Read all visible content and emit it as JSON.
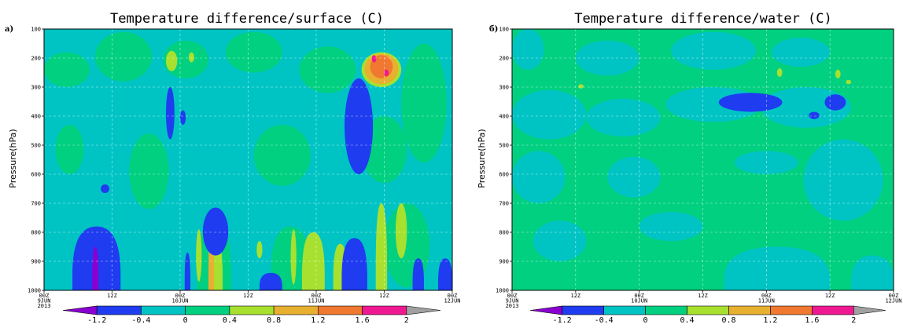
{
  "colors": {
    "c_lt_m12": "#8a00d0",
    "c_m12_m04": "#1f3cf0",
    "c_m04_0": "#00c4c4",
    "c_0_04": "#00d080",
    "c_04_08": "#a8e030",
    "c_08_12": "#e8b030",
    "c_12_16": "#f07830",
    "c_16_2": "#f01890",
    "c_gt_2": "#a0a0a0"
  },
  "colorbar_labels": [
    "-1.2",
    "-0.4",
    "0",
    "0.4",
    "0.8",
    "1.2",
    "1.6",
    "2"
  ],
  "chart_data": [
    {
      "type": "heatmap",
      "panel_label": "a)",
      "title": "Temperature difference/surface (C)",
      "ylabel": "Pressure(hPa)",
      "xlabel": "",
      "yticks": [
        "100",
        "200",
        "300",
        "400",
        "500",
        "600",
        "700",
        "800",
        "900",
        "1000"
      ],
      "xticks": [
        {
          "lines": [
            "00Z",
            "9JUN",
            "2013"
          ]
        },
        {
          "lines": [
            "12Z"
          ]
        },
        {
          "lines": [
            "00Z",
            "10JUN"
          ]
        },
        {
          "lines": [
            "12Z"
          ]
        },
        {
          "lines": [
            "00Z",
            "11JUN"
          ]
        },
        {
          "lines": [
            "12Z"
          ]
        },
        {
          "lines": [
            "00Z",
            "12JUN"
          ]
        }
      ],
      "xlim_hours": [
        0,
        72
      ],
      "ylim_hPa": [
        1000,
        100
      ],
      "y_scale": "linear",
      "background_class": "-0.4 to 0",
      "regions": [
        {
          "range": "0 to 0.4",
          "hours": [
            0,
            8
          ],
          "hPa": [
            180,
            300
          ]
        },
        {
          "range": "0 to 0.4",
          "hours": [
            9,
            19
          ],
          "hPa": [
            110,
            280
          ]
        },
        {
          "range": "0 to 0.4",
          "hours": [
            2,
            7
          ],
          "hPa": [
            430,
            600
          ]
        },
        {
          "range": "0 to 0.4",
          "hours": [
            21,
            29
          ],
          "hPa": [
            140,
            270
          ]
        },
        {
          "range": "0 to 0.4",
          "hours": [
            32,
            42
          ],
          "hPa": [
            110,
            250
          ]
        },
        {
          "range": "0 to 0.4",
          "hours": [
            45,
            55
          ],
          "hPa": [
            160,
            320
          ]
        },
        {
          "range": "0 to 0.4",
          "hours": [
            15,
            22
          ],
          "hPa": [
            460,
            720
          ]
        },
        {
          "range": "0 to 0.4",
          "hours": [
            37,
            47
          ],
          "hPa": [
            430,
            640
          ]
        },
        {
          "range": "0 to 0.4",
          "hours": [
            56,
            64
          ],
          "hPa": [
            400,
            630
          ]
        },
        {
          "range": "0 to 0.4",
          "hours": [
            63,
            71
          ],
          "hPa": [
            150,
            560
          ]
        },
        {
          "range": "0 to 0.4",
          "hours": [
            27,
            33
          ],
          "hPa": [
            760,
            1000
          ]
        },
        {
          "range": "0 to 0.4",
          "hours": [
            40,
            47
          ],
          "hPa": [
            780,
            1000
          ]
        },
        {
          "range": "0 to 0.4",
          "hours": [
            60,
            68
          ],
          "hPa": [
            700,
            990
          ]
        },
        {
          "range": "0.4 to 0.8",
          "hours": [
            21.5,
            23.5
          ],
          "hPa": [
            175,
            245
          ]
        },
        {
          "range": "0.4 to 0.8",
          "hours": [
            25.5,
            26.5
          ],
          "hPa": [
            180,
            215
          ]
        },
        {
          "range": "0.4 to 0.8",
          "hours": [
            26.8,
            27.8
          ],
          "hPa": [
            790,
            970
          ]
        },
        {
          "range": "0.4 to 0.8",
          "hours": [
            29.5,
            31.5
          ],
          "hPa": [
            830,
            1000
          ]
        },
        {
          "range": "0.4 to 0.8",
          "hours": [
            37.5,
            38.5
          ],
          "hPa": [
            830,
            890
          ]
        },
        {
          "range": "0.4 to 0.8",
          "hours": [
            43.5,
            44.5
          ],
          "hPa": [
            790,
            980
          ]
        },
        {
          "range": "0.4 to 0.8",
          "hours": [
            45.5,
            49.5
          ],
          "hPa": [
            800,
            1000
          ]
        },
        {
          "range": "0.4 to 0.8",
          "hours": [
            51,
            53.5
          ],
          "hPa": [
            840,
            1000
          ]
        },
        {
          "range": "0.4 to 0.8",
          "hours": [
            58.5,
            60.5
          ],
          "hPa": [
            700,
            1000
          ]
        },
        {
          "range": "0.4 to 0.8",
          "hours": [
            62,
            64
          ],
          "hPa": [
            700,
            890
          ]
        },
        {
          "range": "0.4 to 0.8",
          "hours": [
            56,
            63
          ],
          "hPa": [
            180,
            300
          ]
        },
        {
          "range": "0.8 to 1.2",
          "hours": [
            29,
            30
          ],
          "hPa": [
            790,
            1000
          ]
        },
        {
          "range": "0.8 to 1.2",
          "hours": [
            56.5,
            62.5
          ],
          "hPa": [
            185,
            290
          ]
        },
        {
          "range": "1.2 to 1.6",
          "hours": [
            57.5,
            61.5
          ],
          "hPa": [
            190,
            270
          ]
        },
        {
          "range": "1.6 to 2",
          "hours": [
            57.8,
            58.6
          ],
          "hPa": [
            190,
            215
          ]
        },
        {
          "range": "1.6 to 2",
          "hours": [
            60,
            60.8
          ],
          "hPa": [
            240,
            262
          ]
        },
        {
          "range": "-1.2 to -0.4",
          "hours": [
            5,
            13.5
          ],
          "hPa": [
            780,
            1000
          ]
        },
        {
          "range": "-1.2 to -0.4",
          "hours": [
            10,
            11.5
          ],
          "hPa": [
            635,
            665
          ]
        },
        {
          "range": "-1.2 to -0.4",
          "hours": [
            21.5,
            23
          ],
          "hPa": [
            300,
            480
          ]
        },
        {
          "range": "-1.2 to -0.4",
          "hours": [
            24,
            25
          ],
          "hPa": [
            380,
            430
          ]
        },
        {
          "range": "-1.2 to -0.4",
          "hours": [
            28,
            32.5
          ],
          "hPa": [
            715,
            880
          ]
        },
        {
          "range": "-1.2 to -0.4",
          "hours": [
            24.8,
            25.8
          ],
          "hPa": [
            870,
            1000
          ]
        },
        {
          "range": "-1.2 to -0.4",
          "hours": [
            38,
            42
          ],
          "hPa": [
            940,
            1000
          ]
        },
        {
          "range": "-1.2 to -0.4",
          "hours": [
            53,
            58
          ],
          "hPa": [
            270,
            600
          ]
        },
        {
          "range": "-1.2 to -0.4",
          "hours": [
            52.5,
            57
          ],
          "hPa": [
            820,
            1000
          ]
        },
        {
          "range": "-1.2 to -0.4",
          "hours": [
            65,
            67
          ],
          "hPa": [
            890,
            1000
          ]
        },
        {
          "range": "-1.2 to -0.4",
          "hours": [
            69.5,
            72
          ],
          "hPa": [
            890,
            1000
          ]
        },
        {
          "range": "< -1.2",
          "hours": [
            8.5,
            9.6
          ],
          "hPa": [
            850,
            1000
          ]
        }
      ]
    },
    {
      "type": "heatmap",
      "panel_label": "б)",
      "title": "Temperature difference/water (C)",
      "ylabel": "Pressure(hPa)",
      "xlabel": "",
      "yticks": [
        "100",
        "200",
        "300",
        "400",
        "500",
        "600",
        "700",
        "800",
        "900",
        "1000"
      ],
      "xticks": [
        {
          "lines": [
            "00Z",
            "9JUN",
            "2013"
          ]
        },
        {
          "lines": [
            "12Z"
          ]
        },
        {
          "lines": [
            "00Z",
            "10JUN"
          ]
        },
        {
          "lines": [
            "12Z"
          ]
        },
        {
          "lines": [
            "00Z",
            "11JUN"
          ]
        },
        {
          "lines": [
            "12Z"
          ]
        },
        {
          "lines": [
            "00Z",
            "12JUN"
          ]
        }
      ],
      "xlim_hours": [
        0,
        72
      ],
      "ylim_hPa": [
        1000,
        100
      ],
      "y_scale": "linear",
      "background_class": "0 to 0.4",
      "regions": [
        {
          "range": "-0.4 to 0",
          "hours": [
            0,
            6
          ],
          "hPa": [
            100,
            240
          ]
        },
        {
          "range": "-0.4 to 0",
          "hours": [
            12,
            24
          ],
          "hPa": [
            140,
            260
          ]
        },
        {
          "range": "-0.4 to 0",
          "hours": [
            30,
            46
          ],
          "hPa": [
            110,
            240
          ]
        },
        {
          "range": "-0.4 to 0",
          "hours": [
            49,
            60
          ],
          "hPa": [
            130,
            230
          ]
        },
        {
          "range": "-0.4 to 0",
          "hours": [
            0,
            14
          ],
          "hPa": [
            310,
            480
          ]
        },
        {
          "range": "-0.4 to 0",
          "hours": [
            14,
            28
          ],
          "hPa": [
            340,
            470
          ]
        },
        {
          "range": "-0.4 to 0",
          "hours": [
            29,
            47
          ],
          "hPa": [
            300,
            420
          ]
        },
        {
          "range": "-0.4 to 0",
          "hours": [
            47,
            64
          ],
          "hPa": [
            300,
            440
          ]
        },
        {
          "range": "-0.4 to 0",
          "hours": [
            0,
            10
          ],
          "hPa": [
            520,
            700
          ]
        },
        {
          "range": "-0.4 to 0",
          "hours": [
            18,
            28
          ],
          "hPa": [
            540,
            680
          ]
        },
        {
          "range": "-0.4 to 0",
          "hours": [
            42,
            54
          ],
          "hPa": [
            520,
            600
          ]
        },
        {
          "range": "-0.4 to 0",
          "hours": [
            55,
            70
          ],
          "hPa": [
            480,
            760
          ]
        },
        {
          "range": "-0.4 to 0",
          "hours": [
            4,
            14
          ],
          "hPa": [
            760,
            900
          ]
        },
        {
          "range": "-0.4 to 0",
          "hours": [
            24,
            36
          ],
          "hPa": [
            730,
            830
          ]
        },
        {
          "range": "-0.4 to 0",
          "hours": [
            40,
            60
          ],
          "hPa": [
            850,
            1000
          ]
        },
        {
          "range": "-0.4 to 0",
          "hours": [
            64,
            72
          ],
          "hPa": [
            880,
            1000
          ]
        },
        {
          "range": "0.4 to 0.8",
          "hours": [
            12.5,
            13.5
          ],
          "hPa": [
            290,
            305
          ]
        },
        {
          "range": "0.4 to 0.8",
          "hours": [
            50,
            51
          ],
          "hPa": [
            235,
            265
          ]
        },
        {
          "range": "0.4 to 0.8",
          "hours": [
            61,
            62
          ],
          "hPa": [
            240,
            270
          ]
        },
        {
          "range": "0.4 to 0.8",
          "hours": [
            63,
            64
          ],
          "hPa": [
            275,
            290
          ]
        },
        {
          "range": "-1.2 to -0.4",
          "hours": [
            39,
            51
          ],
          "hPa": [
            320,
            385
          ]
        },
        {
          "range": "-1.2 to -0.4",
          "hours": [
            59,
            63
          ],
          "hPa": [
            325,
            380
          ]
        },
        {
          "range": "-1.2 to -0.4",
          "hours": [
            56,
            58
          ],
          "hPa": [
            385,
            410
          ]
        }
      ]
    }
  ]
}
